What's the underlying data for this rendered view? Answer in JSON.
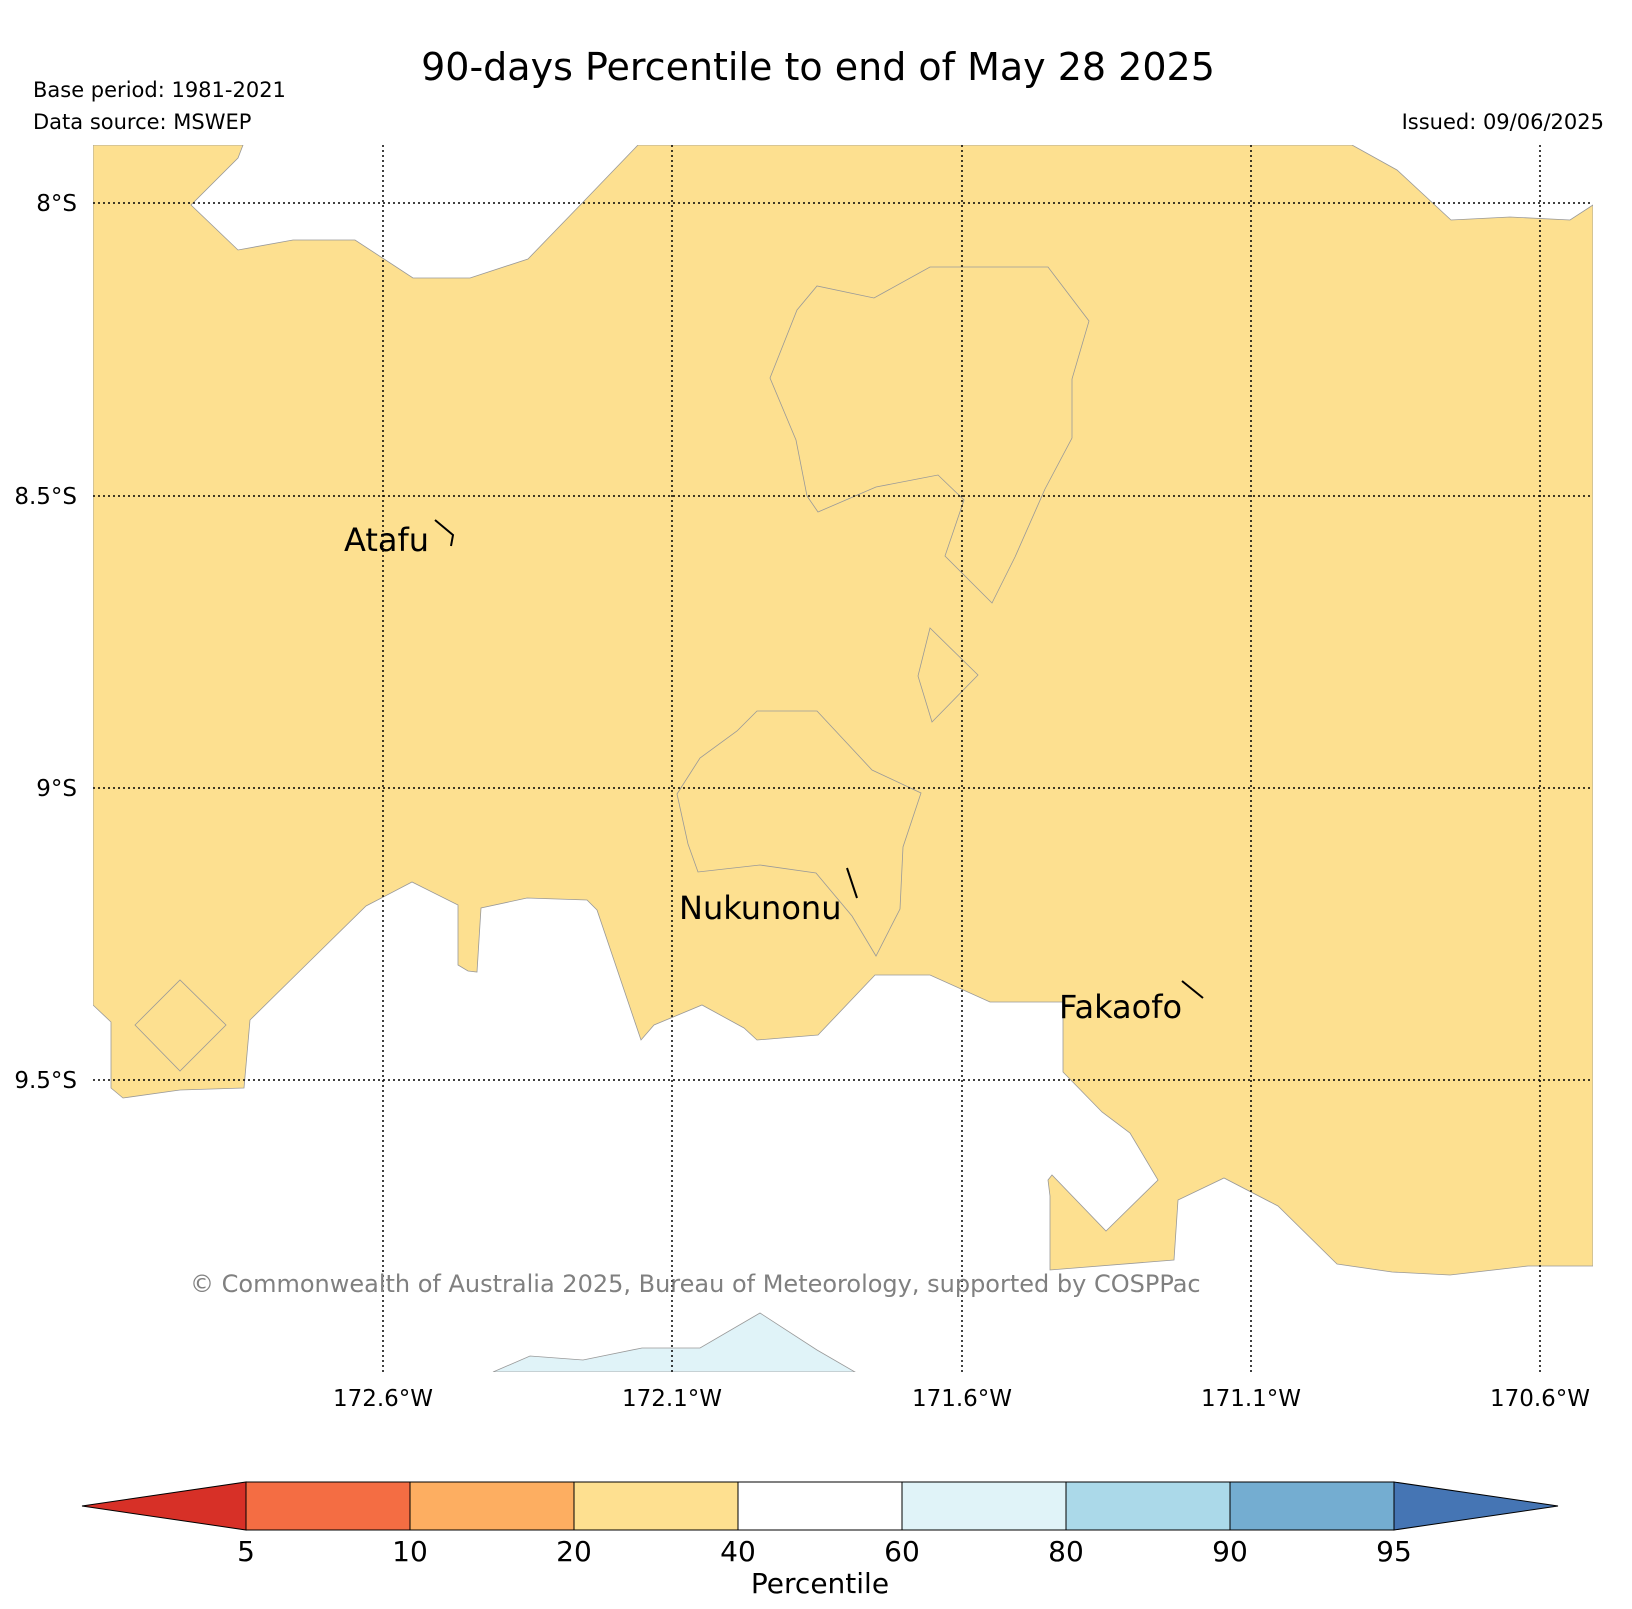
{
  "title": "90-days Percentile to end of May 28 2025",
  "base_period": "Base period: 1981-2021",
  "data_source": "Data source: MSWEP",
  "issued": "Issued: 09/06/2025",
  "copyright": "© Commonwealth of Australia 2025, Bureau of Meteorology, supported by COSPPac",
  "map": {
    "lon_ticks": [
      "172.6°W",
      "172.1°W",
      "171.6°W",
      "171.1°W",
      "170.6°W"
    ],
    "lat_ticks": [
      "8°S",
      "8.5°S",
      "9°S",
      "9.5°S"
    ],
    "places": [
      {
        "name": "Atafu"
      },
      {
        "name": "Nukunonu"
      },
      {
        "name": "Fakaofo"
      }
    ],
    "dominant_category": "20-40",
    "dominant_color": "#fde090"
  },
  "colorbar": {
    "label": "Percentile",
    "ticks": [
      "5",
      "10",
      "20",
      "40",
      "60",
      "80",
      "90",
      "95"
    ],
    "colors": [
      "#d73027",
      "#f46d43",
      "#fdae61",
      "#fee090",
      "#ffffff",
      "#e0f3f8",
      "#abd9e9",
      "#74add1",
      "#4575b4"
    ]
  }
}
